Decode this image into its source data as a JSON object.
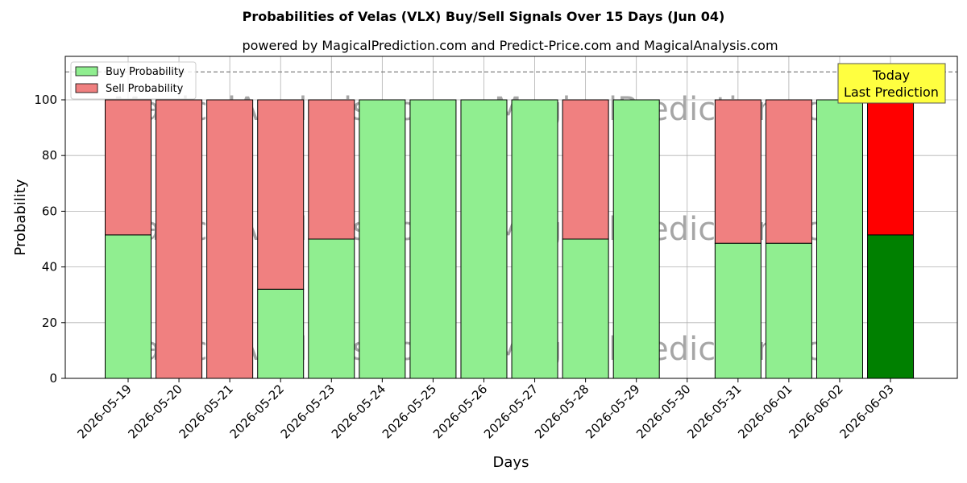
{
  "chart_data": {
    "type": "bar",
    "title": "Probabilities of Velas (VLX) Buy/Sell Signals Over 15 Days (Jun 04)",
    "subtitle": "powered by MagicalPrediction.com and Predict-Price.com and MagicalAnalysis.com",
    "xlabel": "Days",
    "ylabel": "Probability",
    "ylim": [
      0,
      115
    ],
    "yticks": [
      0,
      20,
      40,
      60,
      80,
      100
    ],
    "reference_line": 110,
    "grid": true,
    "legend_position": "top-left",
    "categories": [
      "2026-05-19",
      "2026-05-20",
      "2026-05-21",
      "2026-05-22",
      "2026-05-23",
      "2026-05-24",
      "2026-05-25",
      "2026-05-26",
      "2026-05-27",
      "2026-05-28",
      "2026-05-29",
      "2026-05-30",
      "2026-05-31",
      "2026-06-01",
      "2026-06-02",
      "2026-06-03"
    ],
    "series": [
      {
        "name": "Buy Probability",
        "color": "#90ee90",
        "values": [
          51.5,
          0,
          0,
          32,
          50,
          100,
          100,
          100,
          100,
          50,
          100,
          null,
          48.5,
          48.5,
          100,
          51.5
        ]
      },
      {
        "name": "Sell Probability",
        "color": "#f08080",
        "values": [
          48.5,
          100,
          100,
          68,
          50,
          0,
          0,
          0,
          0,
          50,
          0,
          null,
          51.5,
          51.5,
          0,
          48.5
        ]
      }
    ],
    "highlight": {
      "index": 15,
      "buy_color": "#008000",
      "sell_color": "#ff0000"
    },
    "annotation": {
      "line1": "Today",
      "line2": "Last Prediction",
      "color": "#ffff40"
    },
    "watermarks": [
      "MagicalAnalysis.com",
      "MagicalPrediction.com"
    ]
  }
}
